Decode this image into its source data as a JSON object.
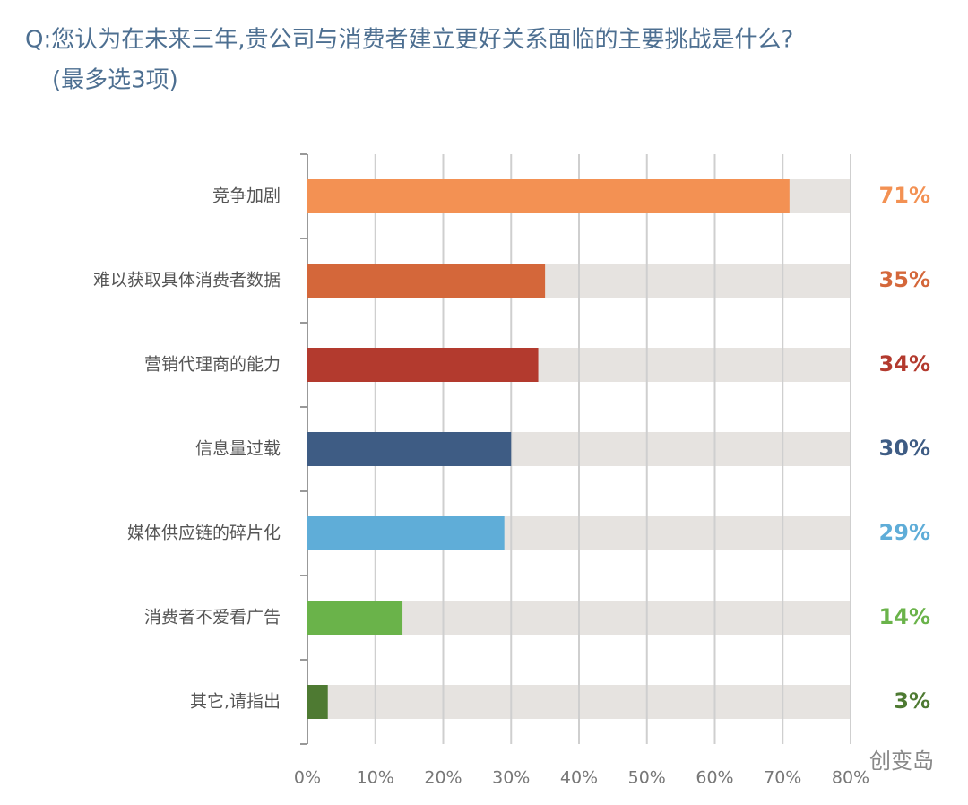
{
  "chart_data": {
    "type": "bar",
    "orientation": "horizontal",
    "title": "Q:您认为在未来三年,贵公司与消费者建立更好关系面临的主要挑战是什么?",
    "subtitle": "(最多选3项)",
    "categories": [
      "竞争加剧",
      "难以获取具体消费者数据",
      "营销代理商的能力",
      "信息量过载",
      "媒体供应链的碎片化",
      "消费者不爱看广告",
      "其它,请指出"
    ],
    "values": [
      71,
      35,
      34,
      30,
      29,
      14,
      3
    ],
    "value_labels": [
      "71%",
      "35%",
      "34%",
      "30%",
      "29%",
      "14%",
      "3%"
    ],
    "colors": [
      "#f39153",
      "#d4673a",
      "#b33a2e",
      "#3e5c84",
      "#5fadd8",
      "#6ab34a",
      "#4e7a32"
    ],
    "xlim": [
      0,
      80
    ],
    "xticks": [
      {
        "value": 0,
        "label": "0%"
      },
      {
        "value": 10,
        "label": "10%"
      },
      {
        "value": 20,
        "label": "20%"
      },
      {
        "value": 30,
        "label": "30%"
      },
      {
        "value": 40,
        "label": "40%"
      },
      {
        "value": 50,
        "label": "50%"
      },
      {
        "value": 60,
        "label": "60%"
      },
      {
        "value": 70,
        "label": "70%"
      },
      {
        "value": 80,
        "label": "80%"
      }
    ],
    "grid": true,
    "watermark": "创变岛"
  }
}
